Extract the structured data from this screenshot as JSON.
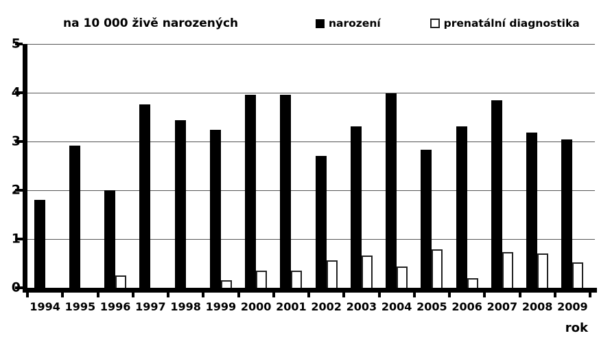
{
  "title": "na 10 000 živě narozených",
  "x_axis_title": "rok",
  "legend": {
    "items": [
      {
        "label": "narození",
        "swatch": "filled-black-square"
      },
      {
        "label": "prenatální diagnostika",
        "swatch": "outlined-white-square"
      }
    ]
  },
  "y_axis": {
    "ticks": [
      "5",
      "4",
      "3",
      "2",
      "1",
      "0"
    ]
  },
  "colors": {
    "bar_fill": "#000000",
    "bar_outline_fill": "#ffffff",
    "bar_outline_border": "#222222",
    "gridline": "#555555",
    "axis": "#000000",
    "background": "#ffffff",
    "text": "#000000"
  },
  "chart_data": {
    "type": "bar",
    "title": "na 10 000 živě narozených",
    "xlabel": "rok",
    "ylabel": "na 10 000 živě narozených",
    "ylim": [
      0,
      5
    ],
    "y_tick_step": 1,
    "grid": true,
    "legend_position": "top",
    "categories": [
      "1994",
      "1995",
      "1996",
      "1997",
      "1998",
      "1999",
      "2000",
      "2001",
      "2002",
      "2003",
      "2004",
      "2005",
      "2006",
      "2007",
      "2008",
      "2009"
    ],
    "series": [
      {
        "name": "narození",
        "style": "filled-black",
        "values": [
          1.8,
          2.92,
          2.0,
          3.76,
          3.43,
          3.24,
          3.96,
          3.96,
          2.7,
          3.31,
          3.99,
          2.83,
          3.31,
          3.84,
          3.18,
          3.04
        ]
      },
      {
        "name": "prenatální diagnostika",
        "style": "outlined-white",
        "values": [
          0,
          0,
          0.22,
          0,
          0,
          0.12,
          0.33,
          0.33,
          0.53,
          0.63,
          0.41,
          0.76,
          0.17,
          0.7,
          0.67,
          0.5
        ]
      }
    ]
  }
}
